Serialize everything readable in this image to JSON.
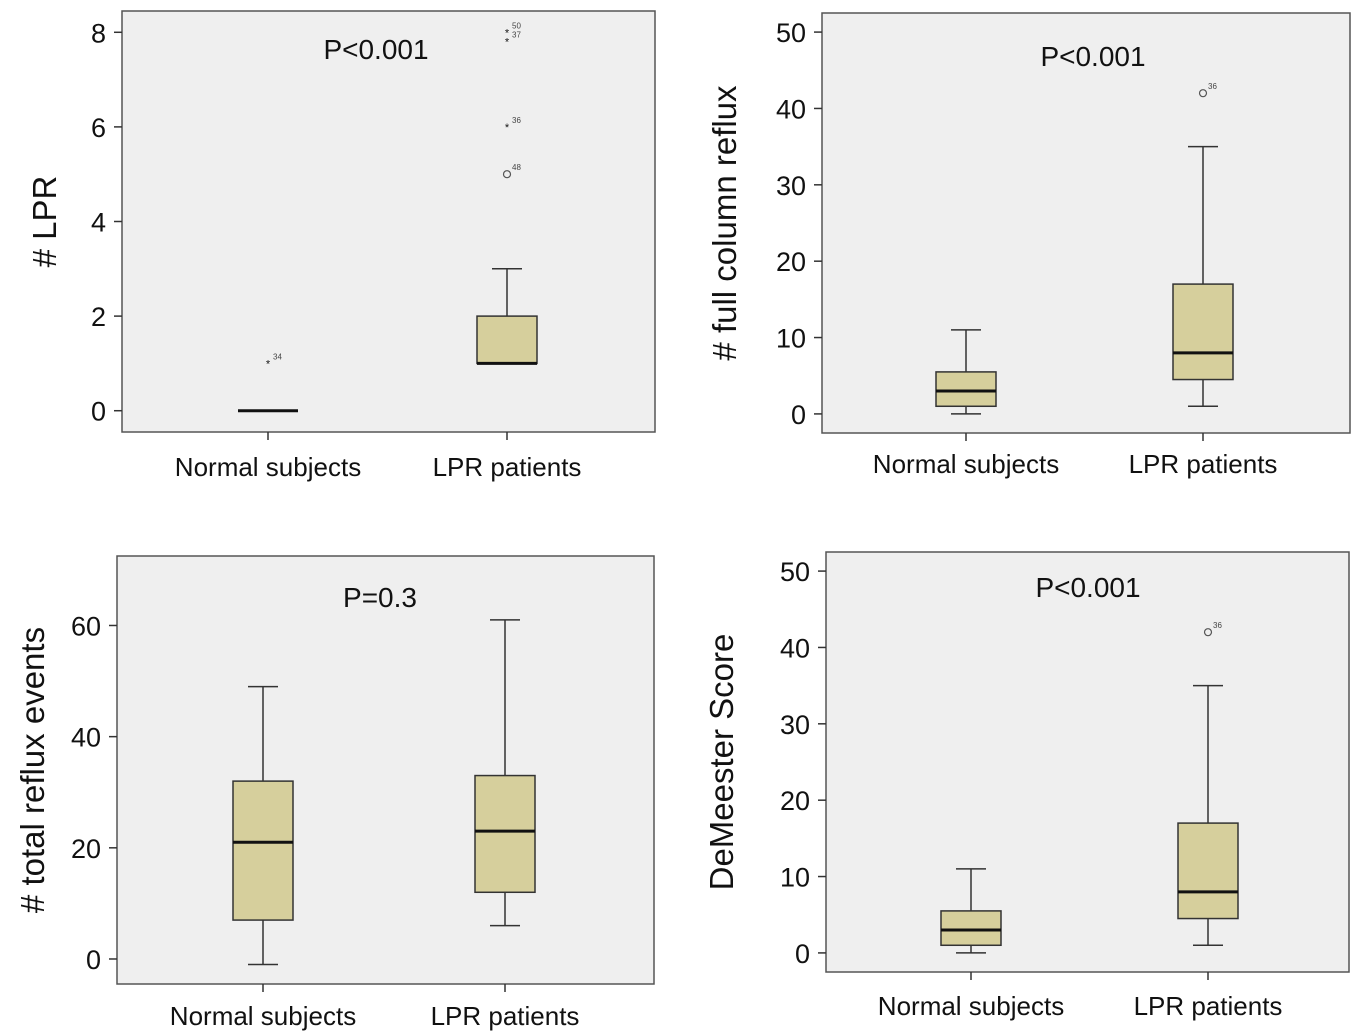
{
  "chart_data": [
    {
      "type": "box",
      "ylabel": "# LPR",
      "annotation": "P<0.001",
      "categories": [
        "Normal subjects",
        "LPR patients"
      ],
      "ylim": [
        -0.45,
        8.45
      ],
      "yticks": [
        0,
        2,
        4,
        6,
        8
      ],
      "fill_color": "#d6cf9c",
      "panel_color": "#efefef",
      "boxes": [
        {
          "q1": 0,
          "median": 0,
          "q3": 0,
          "whisker_low": 0,
          "whisker_high": 0,
          "outliers": [
            {
              "value": 1,
              "label": "34",
              "marker": "*"
            }
          ]
        },
        {
          "q1": 1,
          "median": 1,
          "q3": 2,
          "whisker_low": 1,
          "whisker_high": 3,
          "outliers": [
            {
              "value": 8,
              "label": "50",
              "marker": "*"
            },
            {
              "value": 7.8,
              "label": "37",
              "marker": "*"
            },
            {
              "value": 6,
              "label": "36",
              "marker": "*"
            },
            {
              "value": 5,
              "label": "48",
              "marker": "o"
            }
          ]
        }
      ]
    },
    {
      "type": "box",
      "ylabel": "# full column reflux",
      "annotation": "P<0.001",
      "categories": [
        "Normal subjects",
        "LPR patients"
      ],
      "ylim": [
        -2.5,
        52.5
      ],
      "yticks": [
        0,
        10,
        20,
        30,
        40,
        50
      ],
      "fill_color": "#d6cf9c",
      "panel_color": "#efefef",
      "boxes": [
        {
          "q1": 1,
          "median": 3,
          "q3": 5.5,
          "whisker_low": 0,
          "whisker_high": 11,
          "outliers": []
        },
        {
          "q1": 4.5,
          "median": 8,
          "q3": 17,
          "whisker_low": 1,
          "whisker_high": 35,
          "outliers": [
            {
              "value": 42,
              "label": "36",
              "marker": "o"
            }
          ]
        }
      ]
    },
    {
      "type": "box",
      "ylabel": "# total reflux events",
      "annotation": "P=0.3",
      "categories": [
        "Normal subjects",
        "LPR patients"
      ],
      "ylim": [
        -4.5,
        72.5
      ],
      "yticks": [
        0,
        20,
        40,
        60
      ],
      "fill_color": "#d6cf9c",
      "panel_color": "#efefef",
      "boxes": [
        {
          "q1": 7,
          "median": 21,
          "q3": 32,
          "whisker_low": -1,
          "whisker_high": 49,
          "outliers": []
        },
        {
          "q1": 12,
          "median": 23,
          "q3": 33,
          "whisker_low": 6,
          "whisker_high": 61,
          "outliers": []
        }
      ]
    },
    {
      "type": "box",
      "ylabel": "DeMeester Score",
      "annotation": "P<0.001",
      "categories": [
        "Normal subjects",
        "LPR patients"
      ],
      "ylim": [
        -2.5,
        52.5
      ],
      "yticks": [
        0,
        10,
        20,
        30,
        40,
        50
      ],
      "fill_color": "#d6cf9c",
      "panel_color": "#efefef",
      "boxes": [
        {
          "q1": 1,
          "median": 3,
          "q3": 5.5,
          "whisker_low": 0,
          "whisker_high": 11,
          "outliers": []
        },
        {
          "q1": 4.5,
          "median": 8,
          "q3": 17,
          "whisker_low": 1,
          "whisker_high": 35,
          "outliers": [
            {
              "value": 42,
              "label": "36",
              "marker": "o"
            }
          ]
        }
      ]
    }
  ]
}
